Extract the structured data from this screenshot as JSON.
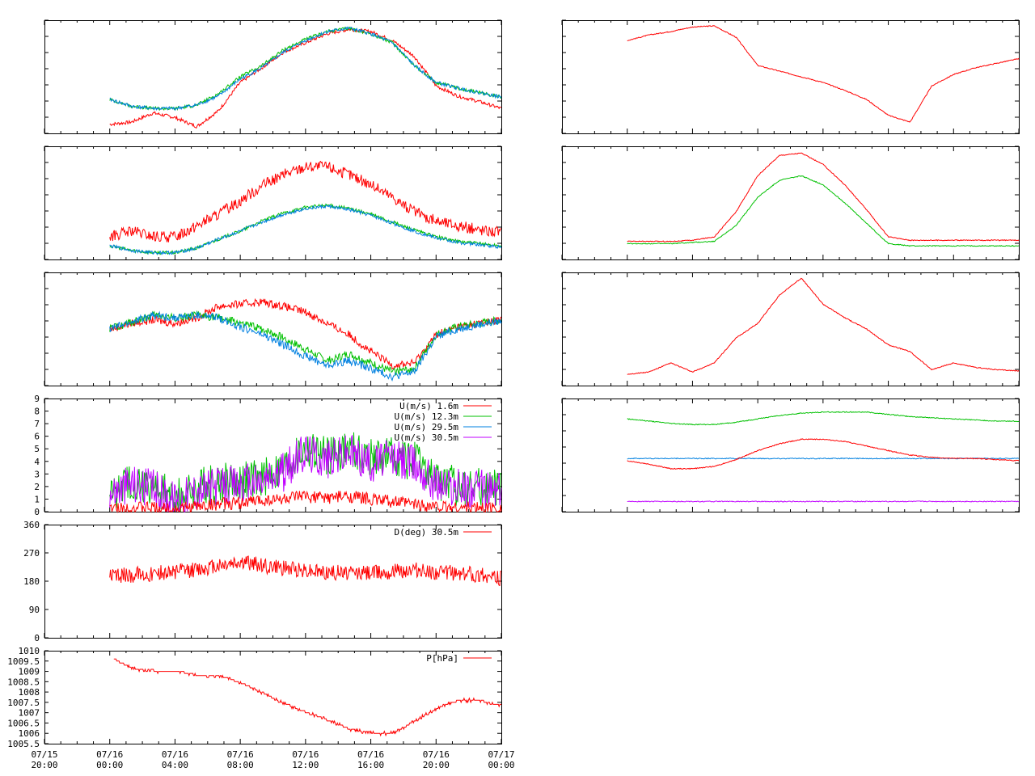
{
  "colors": {
    "red": "#ff0000",
    "green": "#00c000",
    "blue": "#0080e0",
    "purple": "#c000ff",
    "frame": "#000000"
  },
  "x_axis": {
    "range": [
      "07/15 20:00",
      "07/17 00:00"
    ],
    "tick_labels": [
      {
        "date": "07/15",
        "time": "20:00"
      },
      {
        "date": "07/16",
        "time": "00:00"
      },
      {
        "date": "07/16",
        "time": "04:00"
      },
      {
        "date": "07/16",
        "time": "08:00"
      },
      {
        "date": "07/16",
        "time": "12:00"
      },
      {
        "date": "07/16",
        "time": "16:00"
      },
      {
        "date": "07/16",
        "time": "20:00"
      },
      {
        "date": "07/17",
        "time": "00:00"
      }
    ]
  },
  "chart_data": [
    {
      "id": "left-1",
      "type": "line",
      "ytick_labels_shown": false,
      "series": [
        {
          "color": "red",
          "start": "07/16 00:00",
          "values": [
            0.08,
            0.1,
            0.18,
            0.14,
            0.06,
            0.2,
            0.45,
            0.58,
            0.72,
            0.8,
            0.88,
            0.92,
            0.9,
            0.82,
            0.68,
            0.42,
            0.33,
            0.28,
            0.22
          ]
        },
        {
          "color": "green",
          "start": "07/16 00:00",
          "values": [
            0.3,
            0.24,
            0.22,
            0.22,
            0.25,
            0.35,
            0.5,
            0.6,
            0.74,
            0.83,
            0.9,
            0.93,
            0.88,
            0.8,
            0.6,
            0.45,
            0.4,
            0.36,
            0.32
          ]
        },
        {
          "color": "blue",
          "start": "07/16 00:00",
          "values": [
            0.3,
            0.24,
            0.22,
            0.22,
            0.25,
            0.33,
            0.48,
            0.58,
            0.72,
            0.82,
            0.9,
            0.93,
            0.88,
            0.8,
            0.6,
            0.45,
            0.4,
            0.36,
            0.32
          ]
        }
      ]
    },
    {
      "id": "left-2",
      "type": "line",
      "ytick_labels_shown": false,
      "series": [
        {
          "color": "red",
          "start": "07/16 00:00",
          "values": [
            0.2,
            0.25,
            0.2,
            0.2,
            0.3,
            0.4,
            0.52,
            0.65,
            0.75,
            0.82,
            0.82,
            0.75,
            0.66,
            0.55,
            0.42,
            0.34,
            0.3,
            0.26,
            0.24
          ]
        },
        {
          "color": "green",
          "start": "07/16 00:00",
          "values": [
            0.12,
            0.08,
            0.06,
            0.06,
            0.1,
            0.18,
            0.25,
            0.34,
            0.41,
            0.46,
            0.48,
            0.45,
            0.4,
            0.33,
            0.26,
            0.2,
            0.16,
            0.14,
            0.12
          ]
        },
        {
          "color": "blue",
          "start": "07/16 00:00",
          "values": [
            0.12,
            0.08,
            0.06,
            0.06,
            0.1,
            0.18,
            0.25,
            0.33,
            0.4,
            0.45,
            0.47,
            0.44,
            0.39,
            0.32,
            0.25,
            0.19,
            0.15,
            0.13,
            0.11
          ]
        }
      ]
    },
    {
      "id": "left-3",
      "type": "line",
      "ytick_labels_shown": false,
      "series": [
        {
          "color": "red",
          "start": "07/16 00:00",
          "values": [
            0.5,
            0.55,
            0.58,
            0.55,
            0.6,
            0.7,
            0.72,
            0.74,
            0.7,
            0.65,
            0.55,
            0.45,
            0.3,
            0.18,
            0.2,
            0.45,
            0.52,
            0.55,
            0.58
          ]
        },
        {
          "color": "green",
          "start": "07/16 00:00",
          "values": [
            0.5,
            0.56,
            0.62,
            0.6,
            0.62,
            0.6,
            0.55,
            0.5,
            0.42,
            0.32,
            0.22,
            0.28,
            0.2,
            0.12,
            0.15,
            0.45,
            0.52,
            0.55,
            0.58
          ]
        },
        {
          "color": "blue",
          "start": "07/16 00:00",
          "values": [
            0.5,
            0.56,
            0.62,
            0.6,
            0.62,
            0.6,
            0.52,
            0.45,
            0.36,
            0.26,
            0.18,
            0.22,
            0.15,
            0.08,
            0.12,
            0.43,
            0.5,
            0.54,
            0.57
          ]
        }
      ]
    },
    {
      "id": "left-4",
      "type": "line",
      "ylim": [
        0,
        9
      ],
      "ytick_labels": [
        "0",
        "1",
        "2",
        "3",
        "4",
        "5",
        "6",
        "7",
        "8",
        "9"
      ],
      "legend": [
        {
          "label": "U(m/s)  1.6m",
          "color": "red"
        },
        {
          "label": "U(m/s) 12.3m",
          "color": "green"
        },
        {
          "label": "U(m/s) 29.5m",
          "color": "blue"
        },
        {
          "label": "U(m/s) 30.5m",
          "color": "purple"
        }
      ],
      "series": [
        {
          "color": "green",
          "start": "07/16 00:00",
          "values": [
            1.5,
            2.5,
            2,
            1,
            2,
            2.2,
            2.5,
            2.6,
            3.5,
            5,
            4.5,
            5,
            4.2,
            4.5,
            4,
            2.5,
            2,
            2,
            1.8
          ]
        },
        {
          "color": "purple",
          "start": "07/16 00:00",
          "values": [
            1.5,
            2.3,
            1.8,
            0.9,
            1.8,
            2,
            2.2,
            2.4,
            3.2,
            4.8,
            4.2,
            4.8,
            3.9,
            4.3,
            3.8,
            2.3,
            1.9,
            1.8,
            1.7
          ]
        },
        {
          "color": "red",
          "start": "07/16 00:00",
          "values": [
            0.2,
            0.3,
            0.3,
            0.2,
            0.4,
            0.6,
            0.7,
            0.9,
            1,
            1.2,
            1.1,
            1.2,
            1,
            0.8,
            0.6,
            0.4,
            0.3,
            0.3,
            0.3
          ]
        }
      ]
    },
    {
      "id": "left-5",
      "type": "line",
      "ylim": [
        0,
        360
      ],
      "ytick_labels": [
        "0",
        "90",
        "180",
        "270",
        "360"
      ],
      "legend": [
        {
          "label": "D(deg)  30.5m",
          "color": "red"
        }
      ],
      "series": [
        {
          "color": "red",
          "start": "07/16 00:00",
          "values": [
            195,
            200,
            205,
            210,
            215,
            230,
            240,
            230,
            220,
            215,
            210,
            205,
            210,
            210,
            215,
            210,
            205,
            200,
            190
          ]
        }
      ]
    },
    {
      "id": "left-6",
      "type": "line",
      "ylim": [
        1005.5,
        1010
      ],
      "ytick_labels": [
        "1005.5",
        "1006",
        "1006.5",
        "1007",
        "1007.5",
        "1008",
        "1008.5",
        "1009",
        "1009.5",
        "1010"
      ],
      "legend": [
        {
          "label": "P[hPa]",
          "color": "red"
        }
      ],
      "series": [
        {
          "color": "red",
          "start": "07/16 00:15",
          "values": [
            1009.6,
            1009.1,
            1009,
            1009,
            1008.8,
            1008.8,
            1008.4,
            1007.9,
            1007.4,
            1007,
            1006.6,
            1006.2,
            1006,
            1006,
            1006.6,
            1007.2,
            1007.6,
            1007.6,
            1007.3
          ]
        }
      ]
    },
    {
      "id": "right-1",
      "type": "line",
      "ytick_labels_shown": false,
      "series": [
        {
          "color": "red",
          "start": "07/16 00:00",
          "values": [
            0.82,
            0.87,
            0.9,
            0.94,
            0.95,
            0.85,
            0.6,
            0.55,
            0.5,
            0.45,
            0.38,
            0.3,
            0.16,
            0.1,
            0.42,
            0.52,
            0.58,
            0.62,
            0.66
          ]
        }
      ]
    },
    {
      "id": "right-2",
      "type": "line",
      "ytick_labels_shown": false,
      "series": [
        {
          "color": "red",
          "start": "07/16 00:00",
          "values": [
            0.16,
            0.16,
            0.16,
            0.17,
            0.2,
            0.42,
            0.74,
            0.92,
            0.94,
            0.84,
            0.66,
            0.44,
            0.2,
            0.17,
            0.17,
            0.17,
            0.17,
            0.17,
            0.17
          ]
        },
        {
          "color": "green",
          "start": "07/16 00:00",
          "values": [
            0.14,
            0.14,
            0.14,
            0.15,
            0.16,
            0.3,
            0.55,
            0.7,
            0.74,
            0.66,
            0.5,
            0.32,
            0.14,
            0.12,
            0.12,
            0.12,
            0.12,
            0.12,
            0.12
          ]
        }
      ]
    },
    {
      "id": "right-3",
      "type": "line",
      "ytick_labels_shown": false,
      "series": [
        {
          "color": "red",
          "start": "07/16 00:00",
          "values": [
            0.1,
            0.12,
            0.2,
            0.12,
            0.2,
            0.42,
            0.55,
            0.8,
            0.95,
            0.72,
            0.6,
            0.5,
            0.36,
            0.3,
            0.14,
            0.2,
            0.16,
            0.14,
            0.13
          ]
        }
      ]
    },
    {
      "id": "right-4",
      "type": "line",
      "ytick_labels_shown": false,
      "series": [
        {
          "color": "green",
          "start": "07/16 00:00",
          "values": [
            0.82,
            0.8,
            0.78,
            0.77,
            0.77,
            0.79,
            0.82,
            0.85,
            0.87,
            0.88,
            0.88,
            0.88,
            0.86,
            0.84,
            0.83,
            0.82,
            0.81,
            0.8,
            0.8
          ]
        },
        {
          "color": "blue",
          "start": "07/16 00:00",
          "values": [
            0.47,
            0.47,
            0.47,
            0.47,
            0.47,
            0.47,
            0.47,
            0.47,
            0.47,
            0.47,
            0.47,
            0.47,
            0.47,
            0.47,
            0.47,
            0.47,
            0.47,
            0.47,
            0.47
          ]
        },
        {
          "color": "red",
          "start": "07/16 00:00",
          "values": [
            0.45,
            0.42,
            0.38,
            0.38,
            0.4,
            0.46,
            0.54,
            0.6,
            0.64,
            0.64,
            0.62,
            0.58,
            0.54,
            0.5,
            0.48,
            0.47,
            0.47,
            0.46,
            0.45
          ]
        },
        {
          "color": "purple",
          "start": "07/16 00:00",
          "values": [
            0.09,
            0.09,
            0.09,
            0.09,
            0.09,
            0.09,
            0.09,
            0.09,
            0.09,
            0.09,
            0.09,
            0.09,
            0.09,
            0.09,
            0.09,
            0.09,
            0.09,
            0.09,
            0.09
          ]
        }
      ]
    }
  ]
}
